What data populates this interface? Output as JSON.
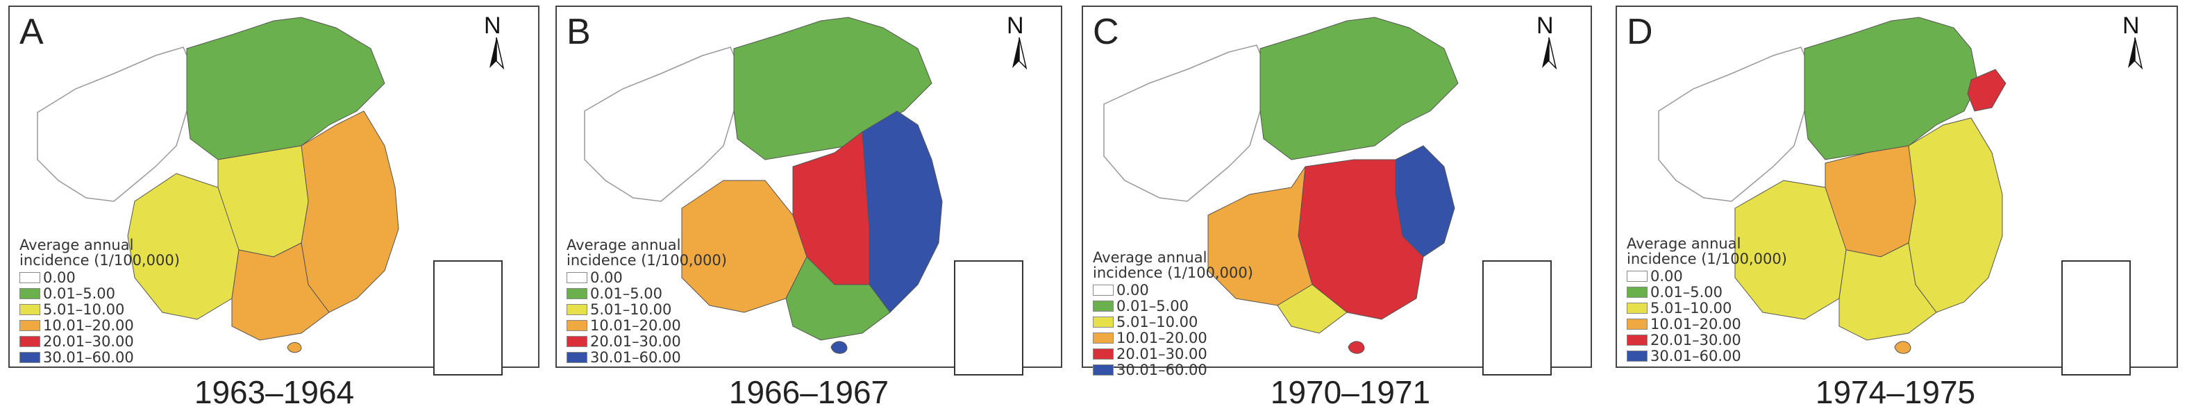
{
  "figure": {
    "legend_title": "Average annual\nincidence (1/100,000)",
    "legend": [
      {
        "label": "0.00",
        "color": "#ffffff"
      },
      {
        "label": "0.01–5.00",
        "color": "#6ab04c"
      },
      {
        "label": "5.01–10.00",
        "color": "#e6e04a"
      },
      {
        "label": "10.01–20.00",
        "color": "#f0a840"
      },
      {
        "label": "20.01–30.00",
        "color": "#d9303a"
      },
      {
        "label": "30.01–60.00",
        "color": "#3452a8"
      }
    ]
  },
  "panels": [
    {
      "letter": "A",
      "years": "1963–1964",
      "scheme": [
        "#6ab04c",
        "#f0a840",
        "#e6e04a",
        "#e6e04a",
        "#f0a840"
      ]
    },
    {
      "letter": "B",
      "years": "1966–1967",
      "scheme": [
        "#6ab04c",
        "#f0a840",
        "#d9303a",
        "#3452a8",
        "#6ab04c"
      ]
    },
    {
      "letter": "C",
      "years": "1970–1971",
      "scheme": [
        "#6ab04c",
        "#f0a840",
        "#d9303a",
        "#3452a8",
        "#e6e04a"
      ]
    },
    {
      "letter": "D",
      "years": "1974–1975",
      "scheme": [
        "#6ab04c",
        "#f0a840",
        "#e6e04a",
        "#e6e04a",
        "#d9303a"
      ]
    }
  ]
}
